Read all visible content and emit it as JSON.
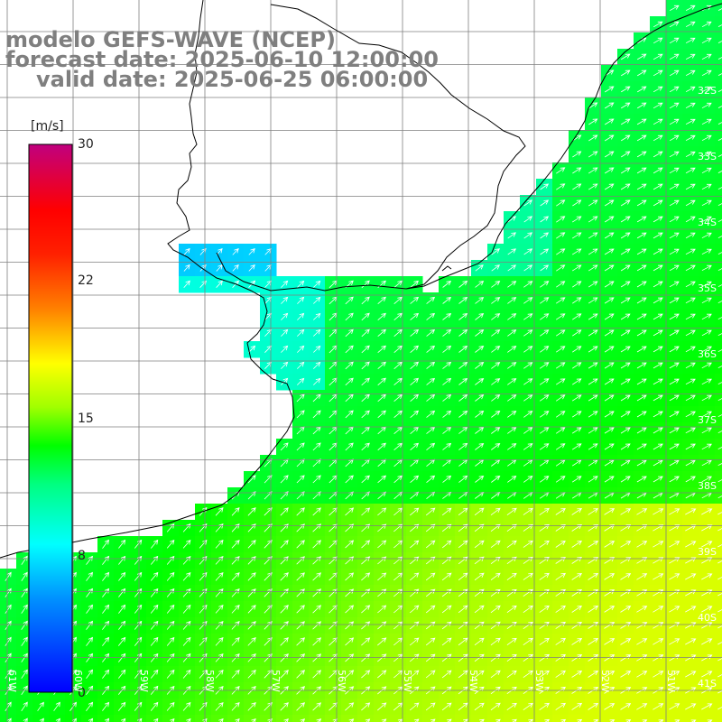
{
  "title": {
    "line1": "modelo GEFS-WAVE (NCEP)",
    "line2": "forecast date: 2025-06-10 12:00:00",
    "line3": "valid date: 2025-06-25 06:00:00"
  },
  "colorbar": {
    "unit": "[m/s]",
    "ticks": [
      "30",
      "22",
      "15",
      "8",
      "0"
    ]
  },
  "lat_labels": [
    "32S",
    "33S",
    "34S",
    "35S",
    "36S",
    "37S",
    "38S",
    "39S",
    "40S",
    "41S"
  ],
  "lon_labels": [
    "61W",
    "60W",
    "59W",
    "58W",
    "57W",
    "56W",
    "55W",
    "54W",
    "53W",
    "52W",
    "51W"
  ],
  "colors": {
    "land": "#ffffff",
    "coast": "#000000",
    "grid": "#7f7f7f",
    "arrow": "#ffffff",
    "title": "#7f7f7f"
  },
  "field": {
    "variable": "wind speed",
    "unit": "m/s",
    "vmin": 0,
    "vmax": 30,
    "direction": "toward northeast"
  }
}
